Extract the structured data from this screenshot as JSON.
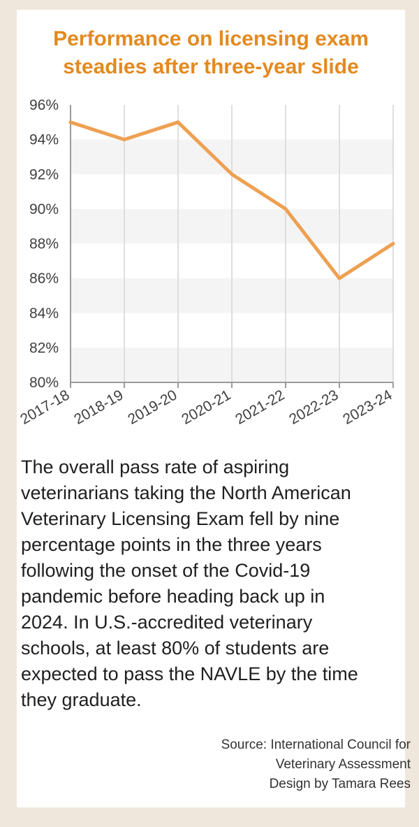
{
  "chart_data": {
    "type": "line",
    "title": "Performance on licensing exam steadies after three-year slide",
    "categories": [
      "2017-18",
      "2018-19",
      "2019-20",
      "2020-21",
      "2021-22",
      "2022-23",
      "2023-24"
    ],
    "values": [
      95,
      94,
      95,
      92,
      90,
      86,
      88
    ],
    "yticks": [
      "80%",
      "82%",
      "84%",
      "86%",
      "88%",
      "90%",
      "92%",
      "94%",
      "96%"
    ],
    "ylim": [
      80,
      96
    ],
    "grid": "horizontal alternating bands and vertical lines",
    "line_color": "#eea052",
    "band_color": "#f4f4f4"
  },
  "description": "The overall pass rate of aspiring veterinarians taking the North American Veterinary Licensing Exam fell by nine percentage points in the three years following the onset of the Covid-19 pandemic before heading back up in 2024. In U.S.-accredited veterinary schools, at least 80% of students are expected to pass the NAVLE by the time they graduate.",
  "credits": {
    "source": "Source: International Council for",
    "source_cont": "Veterinary Assessment",
    "design": "Design by Tamara Rees"
  },
  "colors": {
    "title": "#e28a1f",
    "background": "#efe7dc",
    "card": "#ffffff"
  }
}
